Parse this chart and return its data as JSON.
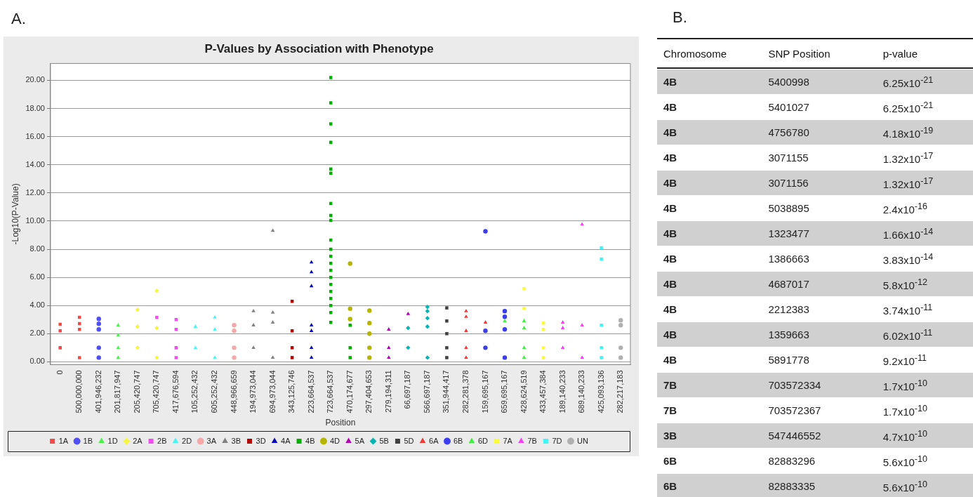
{
  "chart_data": [
    {
      "type": "scatter",
      "title": "P-Values by Association with Phenotype",
      "xlabel": "Position",
      "ylabel": "-Log10(P-Value)",
      "annotations": [
        "A."
      ],
      "grid": "y",
      "legend": "bottom",
      "ylim": [
        -0.2,
        21.2
      ],
      "categories": [
        "0",
        "500,000,000",
        "401,946,232",
        "201,817,947",
        "205,420,747",
        "705,420,747",
        "417,676,594",
        "105,252,432",
        "605,252,432",
        "448,966,659",
        "194,973,044",
        "694,973,044",
        "343,125,746",
        "223,664,537",
        "723,664,537",
        "470,174,677",
        "297,404,653",
        "279,194,311",
        "66,697,187",
        "566,697,187",
        "351,944,417",
        "282,281,378",
        "159,695,167",
        "659,695,167",
        "428,624,519",
        "433,457,384",
        "189,140,233",
        "689,140,233",
        "425,093,136",
        "282,217,183"
      ],
      "yticks": [
        {
          "value": 0,
          "label": "0.00"
        },
        {
          "value": 2,
          "label": "2.00"
        },
        {
          "value": 4,
          "label": "4.00"
        },
        {
          "value": 6,
          "label": "6.00"
        },
        {
          "value": 8,
          "label": "8.00"
        },
        {
          "value": 10,
          "label": "10.00"
        },
        {
          "value": 12,
          "label": "12.00"
        },
        {
          "value": 14,
          "label": "14.00"
        },
        {
          "value": 16,
          "label": "16.00"
        },
        {
          "value": 18,
          "label": "18.00"
        },
        {
          "value": 20,
          "label": "20.00"
        }
      ],
      "series": [
        {
          "name": "1A",
          "color": "#f24848",
          "marker": "square",
          "x": [
            "0",
            "0",
            "0",
            "500,000,000",
            "500,000,000",
            "500,000,000",
            "500,000,000"
          ],
          "values": [
            2.2,
            1.0,
            2.67,
            2.3,
            0.3,
            3.16,
            2.72
          ]
        },
        {
          "name": "1B",
          "color": "#4f4ff5",
          "marker": "circle",
          "x": [
            "401,946,232",
            "401,946,232",
            "401,946,232",
            "401,946,232",
            "401,946,232"
          ],
          "values": [
            2.3,
            1.0,
            0.3,
            3.05,
            2.7
          ]
        },
        {
          "name": "1D",
          "color": "#4cf24c",
          "marker": "triangle",
          "x": [
            "201,817,947",
            "201,817,947",
            "201,817,947",
            "201,817,947"
          ],
          "values": [
            1.9,
            1.0,
            0.3,
            2.6
          ]
        },
        {
          "name": "2A",
          "color": "#f5f542",
          "marker": "diamond",
          "x": [
            "205,420,747",
            "205,420,747",
            "205,420,747",
            "705,420,747",
            "705,420,747",
            "705,420,747"
          ],
          "values": [
            2.5,
            1.0,
            3.7,
            2.4,
            0.3,
            5.05
          ]
        },
        {
          "name": "2B",
          "color": "#f04cf0",
          "marker": "square",
          "x": [
            "417,676,594",
            "417,676,594",
            "417,676,594",
            "417,676,594",
            "705,420,747"
          ],
          "values": [
            2.3,
            1.0,
            0.3,
            3.0,
            3.15
          ]
        },
        {
          "name": "2D",
          "color": "#4cf5f5",
          "marker": "triangle",
          "x": [
            "105,252,432",
            "105,252,432",
            "605,252,432",
            "605,252,432",
            "605,252,432"
          ],
          "values": [
            2.5,
            1.0,
            2.3,
            0.3,
            3.15
          ]
        },
        {
          "name": "3A",
          "color": "#f5a8a8",
          "marker": "circle",
          "x": [
            "448,966,659",
            "448,966,659",
            "448,966,659",
            "448,966,659"
          ],
          "values": [
            2.2,
            1.0,
            0.3,
            2.6
          ]
        },
        {
          "name": "3B",
          "color": "#808080",
          "marker": "triangle",
          "x": [
            "194,973,044",
            "194,973,044",
            "194,973,044",
            "694,973,044",
            "694,973,044",
            "694,973,044",
            "694,973,044"
          ],
          "values": [
            2.6,
            1.0,
            3.6,
            2.8,
            0.3,
            3.5,
            9.32
          ]
        },
        {
          "name": "3D",
          "color": "#b00000",
          "marker": "square",
          "x": [
            "343,125,746",
            "343,125,746",
            "343,125,746",
            "343,125,746"
          ],
          "values": [
            2.2,
            1.0,
            0.3,
            4.3
          ]
        },
        {
          "name": "4A",
          "color": "#0000b0",
          "marker": "triangle",
          "x": [
            "223,664,537",
            "223,664,537",
            "223,664,537",
            "223,664,537",
            "223,664,537",
            "223,664,537",
            "223,664,537"
          ],
          "values": [
            2.2,
            1.0,
            0.3,
            2.6,
            7.07,
            6.37,
            5.38
          ]
        },
        {
          "name": "4B",
          "color": "#00b000",
          "marker": "square",
          "x": [
            "470,174,677",
            "470,174,677",
            "470,174,677",
            "723,664,537",
            "723,664,537",
            "723,664,537",
            "723,664,537",
            "723,664,537",
            "723,664,537",
            "723,664,537",
            "723,664,537",
            "723,664,537",
            "723,664,537",
            "723,664,537",
            "723,664,537",
            "723,664,537",
            "723,664,537",
            "723,664,537",
            "723,664,537",
            "723,664,537",
            "723,664,537",
            "723,664,537",
            "723,664,537",
            "723,664,537"
          ],
          "values": [
            2.6,
            1.0,
            0.3,
            2.8,
            20.2,
            18.4,
            16.9,
            15.6,
            13.7,
            13.4,
            11.25,
            10.4,
            10.05,
            8.65,
            8.0,
            7.5,
            7.0,
            6.5,
            6.0,
            5.5,
            5.0,
            4.5,
            4.0,
            3.5
          ]
        },
        {
          "name": "4D",
          "color": "#b5b500",
          "marker": "circle",
          "x": [
            "297,404,653",
            "297,404,653",
            "297,404,653",
            "470,174,677",
            "470,174,677",
            "470,174,677",
            "297,404,653",
            "297,404,653"
          ],
          "values": [
            2.0,
            1.0,
            0.3,
            6.98,
            3.78,
            3.04,
            2.75,
            3.64
          ]
        },
        {
          "name": "5A",
          "color": "#b000b0",
          "marker": "triangle",
          "x": [
            "279,194,311",
            "279,194,311",
            "279,194,311",
            "66,697,187"
          ],
          "values": [
            2.3,
            1.0,
            0.3,
            3.4
          ]
        },
        {
          "name": "5B",
          "color": "#00b5b5",
          "marker": "diamond",
          "x": [
            "66,697,187",
            "66,697,187",
            "566,697,187",
            "566,697,187",
            "566,697,187",
            "566,697,187",
            "566,697,187"
          ],
          "values": [
            2.4,
            1.0,
            2.5,
            0.3,
            3.9,
            3.6,
            3.1
          ]
        },
        {
          "name": "5D",
          "color": "#404040",
          "marker": "square",
          "x": [
            "351,944,417",
            "351,944,417",
            "351,944,417",
            "351,944,417",
            "351,944,417"
          ],
          "values": [
            2.0,
            1.0,
            0.3,
            3.83,
            2.9
          ]
        },
        {
          "name": "6A",
          "color": "#f03a3a",
          "marker": "triangle",
          "x": [
            "282,281,378",
            "282,281,378",
            "282,281,378",
            "282,281,378",
            "282,281,378",
            "159,695,167"
          ],
          "values": [
            2.2,
            1.0,
            0.3,
            3.6,
            3.2,
            2.8
          ]
        },
        {
          "name": "6B",
          "color": "#3c3cf0",
          "marker": "circle",
          "x": [
            "159,695,167",
            "159,695,167",
            "159,695,167",
            "659,695,167",
            "659,695,167",
            "659,695,167",
            "659,695,167"
          ],
          "values": [
            2.2,
            1.0,
            9.27,
            2.3,
            0.3,
            3.6,
            3.2
          ]
        },
        {
          "name": "6D",
          "color": "#40f040",
          "marker": "triangle",
          "x": [
            "428,624,519",
            "428,624,519",
            "428,624,519",
            "659,695,167",
            "428,624,519"
          ],
          "values": [
            2.4,
            1.0,
            0.3,
            2.9,
            2.9
          ]
        },
        {
          "name": "7A",
          "color": "#fafa3c",
          "marker": "square",
          "x": [
            "433,457,384",
            "433,457,384",
            "433,457,384",
            "428,624,519",
            "428,624,519",
            "433,457,384"
          ],
          "values": [
            2.3,
            1.0,
            0.3,
            5.2,
            3.8,
            2.75
          ]
        },
        {
          "name": "7B",
          "color": "#f540f5",
          "marker": "triangle",
          "x": [
            "189,140,233",
            "189,140,233",
            "189,140,233",
            "689,140,233",
            "689,140,233",
            "689,140,233"
          ],
          "values": [
            2.4,
            1.0,
            2.8,
            2.6,
            0.3,
            9.76
          ]
        },
        {
          "name": "7D",
          "color": "#40f5f5",
          "marker": "square",
          "x": [
            "425,093,136",
            "425,093,136",
            "425,093,136",
            "425,093,136",
            "425,093,136"
          ],
          "values": [
            2.6,
            1.0,
            0.3,
            8.1,
            7.3
          ]
        },
        {
          "name": "UN",
          "color": "#b0b0b0",
          "marker": "circle",
          "x": [
            "282,217,183",
            "282,217,183",
            "282,217,183",
            "282,217,183"
          ],
          "values": [
            2.6,
            1.0,
            0.3,
            2.95
          ]
        }
      ]
    },
    {
      "type": "other",
      "title": "B.",
      "categories": [
        "Chromosome",
        "SNP Position",
        "p-value"
      ],
      "annotations": [
        "4B",
        "5400998",
        "6.25x10$^{-21}$",
        "4B",
        "5401027",
        "6.25x10$^{-21}$",
        "4B",
        "4756780",
        "4.18x10$^{-19}$",
        "4B",
        "3071155",
        "1.32x10$^{-17}$",
        "4B",
        "3071156",
        "1.32x10$^{-17}$",
        "4B",
        "5038895",
        "2.4x10$^{-16}$",
        "4B",
        "1323477",
        "1.66x10$^{-14}$",
        "4B",
        "1386663",
        "3.83x10$^{-14}$",
        "4B",
        "4687017",
        "5.8x10$^{-12}$",
        "4B",
        "2212383",
        "3.74x10$^{-11}$",
        "4B",
        "1359663",
        "6.02x10$^{-11}$",
        "4B",
        "5891778",
        "9.2x10$^{-11}$",
        "7B",
        "703572334",
        "1.7x10$^{-10}$",
        "7B",
        "703572367",
        "1.7x10$^{-10}$",
        "3B",
        "547446552",
        "4.7x10$^{-10}$",
        "6B",
        "82883296",
        "5.6x10$^{-10}$",
        "6B",
        "82883335",
        "5.6x10$^{-10}$"
      ]
    }
  ]
}
